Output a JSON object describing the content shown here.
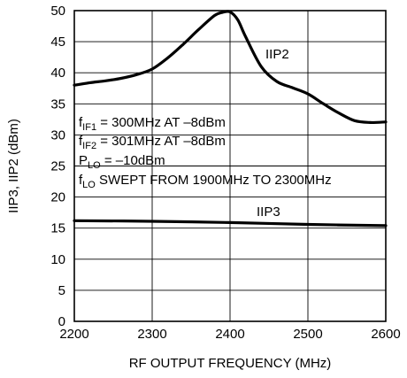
{
  "chart_data": {
    "type": "line",
    "title": "",
    "xlabel": "RF OUTPUT FREQUENCY (MHz)",
    "ylabel": "IIP3, IIP2 (dBm)",
    "xlim": [
      2200,
      2600
    ],
    "ylim": [
      0,
      50
    ],
    "x_ticks": [
      "2200",
      "2300",
      "2400",
      "2500",
      "2600"
    ],
    "y_ticks": [
      "0",
      "5",
      "10",
      "15",
      "20",
      "25",
      "30",
      "35",
      "40",
      "45",
      "50"
    ],
    "grid": true,
    "series": [
      {
        "name": "IIP2",
        "x": [
          2200,
          2220,
          2240,
          2260,
          2280,
          2300,
          2320,
          2340,
          2360,
          2380,
          2390,
          2400,
          2410,
          2420,
          2440,
          2460,
          2480,
          2500,
          2520,
          2540,
          2560,
          2580,
          2600
        ],
        "y": [
          38.0,
          38.4,
          38.7,
          39.1,
          39.7,
          40.6,
          42.4,
          44.6,
          47.0,
          49.2,
          49.7,
          49.8,
          48.5,
          45.8,
          41.0,
          38.6,
          37.6,
          36.6,
          35.0,
          33.5,
          32.3,
          32.0,
          32.1
        ]
      },
      {
        "name": "IIP3",
        "x": [
          2200,
          2300,
          2400,
          2500,
          2600
        ],
        "y": [
          16.2,
          16.1,
          15.9,
          15.6,
          15.4
        ]
      }
    ],
    "annotation_lines": [
      {
        "base": "f",
        "sub": "IF1",
        "rest": " = 300MHz AT –8dBm"
      },
      {
        "base": "f",
        "sub": "IF2",
        "rest": " = 301MHz AT –8dBm"
      },
      {
        "base": "P",
        "sub": "LO",
        "rest": " = –10dBm"
      },
      {
        "base": "f",
        "sub": "LO",
        "rest": " SWEPT FROM 1900MHz TO 2300MHz"
      }
    ]
  }
}
